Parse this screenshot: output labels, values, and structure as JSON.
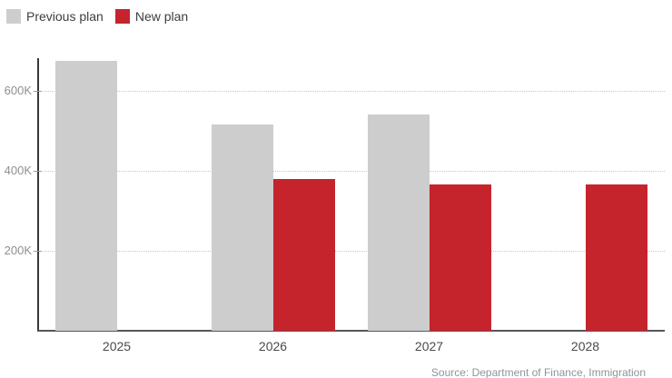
{
  "legend": {
    "items": [
      {
        "label": "Previous plan",
        "color": "#cdcdcd"
      },
      {
        "label": "New plan",
        "color": "#c5242d"
      }
    ]
  },
  "chart_data": {
    "type": "bar",
    "title": "",
    "xlabel": "",
    "ylabel": "",
    "categories": [
      "2025",
      "2026",
      "2027",
      "2028"
    ],
    "series": [
      {
        "name": "Previous plan",
        "color": "#cdcdcd",
        "values": [
          675000,
          515000,
          540000,
          null
        ]
      },
      {
        "name": "New plan",
        "color": "#c5242d",
        "values": [
          null,
          380000,
          365000,
          365000
        ]
      }
    ],
    "ylim": [
      0,
      680000
    ],
    "yticks": [
      {
        "value": 200000,
        "label": "200K"
      },
      {
        "value": 400000,
        "label": "400K"
      },
      {
        "value": 600000,
        "label": "600K"
      }
    ],
    "grid": "horizontal-dotted",
    "legend_position": "top-left"
  },
  "source": {
    "text": "Source: Department of Finance, Immigration"
  }
}
